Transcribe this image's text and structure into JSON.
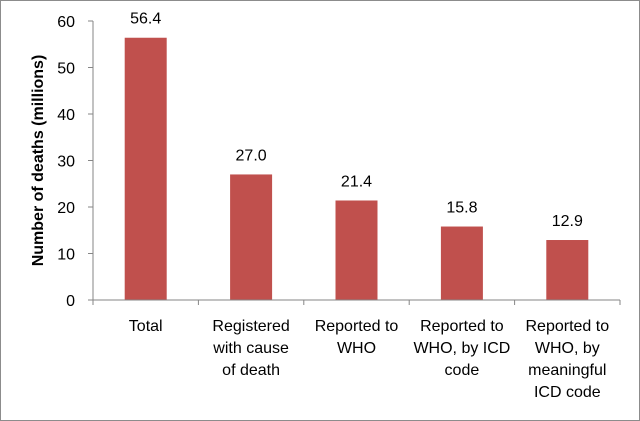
{
  "chart_data": {
    "type": "bar",
    "title": "",
    "xlabel": "",
    "ylabel": "Number of deaths (millions)",
    "ylim": [
      0,
      60
    ],
    "yticks": [
      0,
      10,
      20,
      30,
      40,
      50,
      60
    ],
    "grid": false,
    "legend": "none",
    "bar_color": "#c0504d",
    "categories": [
      [
        "Total"
      ],
      [
        "Registered",
        "with cause",
        "of death"
      ],
      [
        "Reported to",
        "WHO"
      ],
      [
        "Reported to",
        "WHO, by ICD",
        "code"
      ],
      [
        "Reported to",
        "WHO, by",
        "meaningful",
        "ICD code"
      ]
    ],
    "values": [
      56.4,
      27.0,
      21.4,
      15.8,
      12.9
    ],
    "data_labels": [
      "56.4",
      "27.0",
      "21.4",
      "15.8",
      "12.9"
    ]
  }
}
